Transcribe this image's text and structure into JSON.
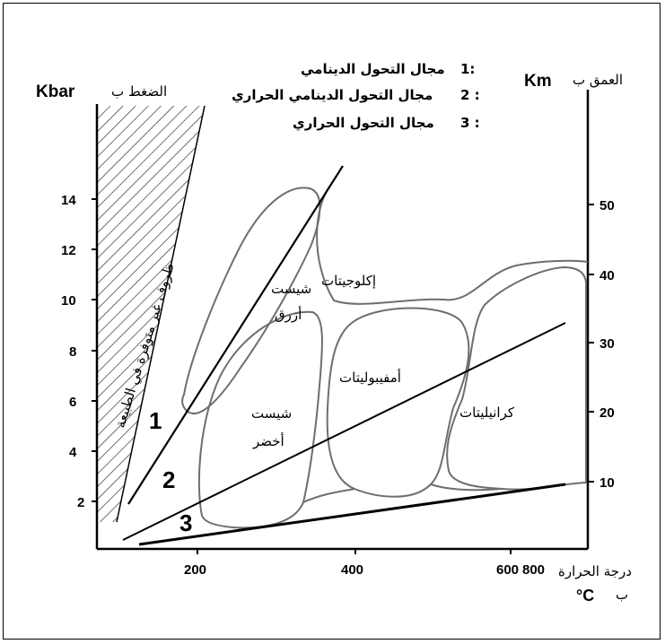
{
  "left_axis": {
    "label_ar": "الضغط ب",
    "label_unit": "Kbar",
    "ticks": [
      "14",
      "12",
      "10",
      "8",
      "6",
      "4",
      "2"
    ]
  },
  "right_axis": {
    "label_ar": "العمق ب",
    "label_unit": "Km",
    "ticks": [
      "50",
      "40",
      "30",
      "20",
      "10"
    ]
  },
  "bottom_axis": {
    "label_ar_line1": "درجة الحرارة",
    "label_ar_line2": "ب",
    "label_unit": "°C",
    "ticks": [
      "200",
      "400",
      "600",
      "800"
    ]
  },
  "legend": [
    {
      "num": "1:",
      "text": "مجال التحول الدينامي"
    },
    {
      "num": "2 :",
      "text": "مجال التحول الدينامي الحراري"
    },
    {
      "num": "3 :",
      "text": "مجال التحول الحراري"
    }
  ],
  "hatched_zone_label": "ظروف غير متوفرة في الطبيعة",
  "facies": {
    "blue_schist_1": "شيست",
    "blue_schist_2": "أزرق",
    "green_schist_1": "شيست",
    "green_schist_2": "أخضر",
    "eclogites": "إكلوجيتات",
    "amphibolites": "أمفيبوليتات",
    "granulites": "كرانيليتات"
  },
  "line_labels": {
    "one": "1",
    "two": "2",
    "three": "3"
  },
  "colors": {
    "facies_outline": "#6e6e6e",
    "lines": "#000000",
    "hatch": "#333333"
  }
}
